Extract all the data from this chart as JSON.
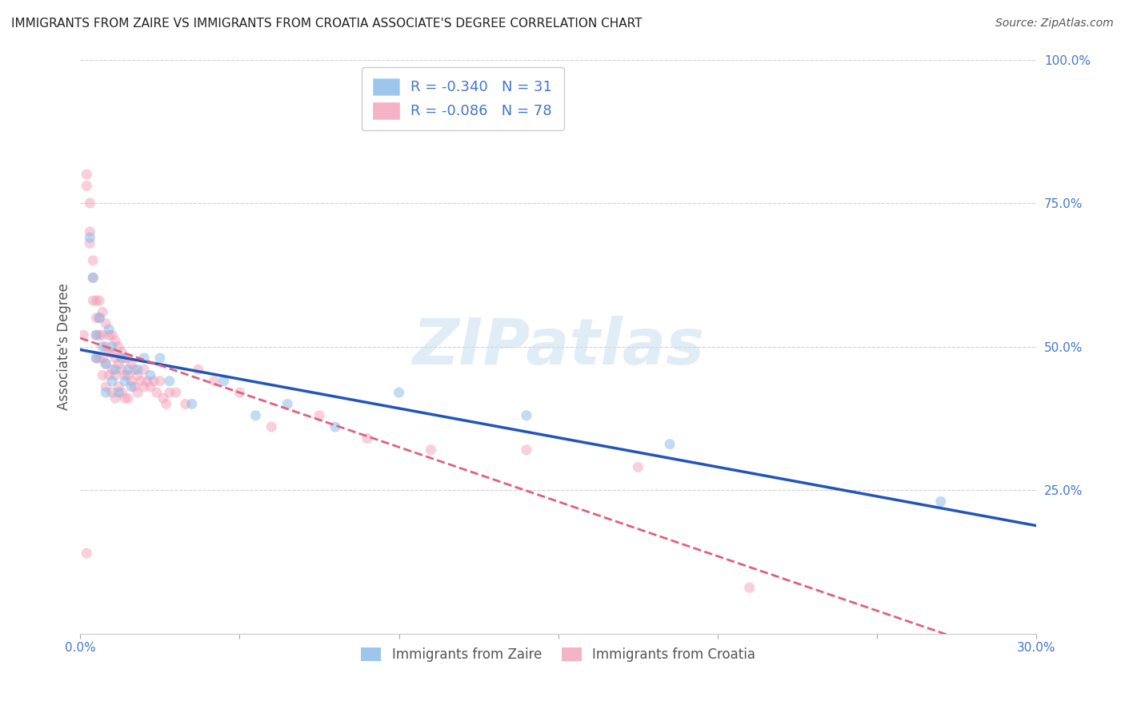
{
  "title": "IMMIGRANTS FROM ZAIRE VS IMMIGRANTS FROM CROATIA ASSOCIATE'S DEGREE CORRELATION CHART",
  "source": "Source: ZipAtlas.com",
  "ylabel": "Associate's Degree",
  "xlim": [
    0.0,
    0.3
  ],
  "ylim": [
    0.0,
    1.0
  ],
  "zaire_color": "#85b8e8",
  "croatia_color": "#f4a0b8",
  "zaire_line_color": "#2255bb",
  "croatia_line_color": "#e06080",
  "watermark_text": "ZIPatlas",
  "zaire_R": -0.34,
  "zaire_N": 31,
  "croatia_R": -0.086,
  "croatia_N": 78,
  "background_color": "#ffffff",
  "grid_color": "#cccccc",
  "axis_label_color": "#4477cc",
  "title_color": "#222222",
  "scatter_alpha": 0.5,
  "scatter_size": 90,
  "zaire_x": [
    0.003,
    0.004,
    0.005,
    0.005,
    0.006,
    0.007,
    0.008,
    0.008,
    0.009,
    0.01,
    0.01,
    0.011,
    0.012,
    0.013,
    0.014,
    0.015,
    0.016,
    0.018,
    0.02,
    0.022,
    0.025,
    0.028,
    0.035,
    0.045,
    0.055,
    0.065,
    0.08,
    0.1,
    0.14,
    0.185,
    0.27
  ],
  "zaire_y": [
    0.69,
    0.62,
    0.52,
    0.48,
    0.55,
    0.5,
    0.47,
    0.42,
    0.53,
    0.5,
    0.44,
    0.46,
    0.42,
    0.48,
    0.44,
    0.46,
    0.43,
    0.46,
    0.48,
    0.45,
    0.48,
    0.44,
    0.4,
    0.44,
    0.38,
    0.4,
    0.36,
    0.42,
    0.38,
    0.33,
    0.23
  ],
  "croatia_x": [
    0.001,
    0.002,
    0.002,
    0.003,
    0.003,
    0.003,
    0.004,
    0.004,
    0.004,
    0.005,
    0.005,
    0.005,
    0.005,
    0.006,
    0.006,
    0.006,
    0.006,
    0.007,
    0.007,
    0.007,
    0.007,
    0.008,
    0.008,
    0.008,
    0.008,
    0.009,
    0.009,
    0.009,
    0.01,
    0.01,
    0.01,
    0.01,
    0.011,
    0.011,
    0.011,
    0.011,
    0.012,
    0.012,
    0.012,
    0.013,
    0.013,
    0.013,
    0.014,
    0.014,
    0.014,
    0.015,
    0.015,
    0.015,
    0.016,
    0.016,
    0.017,
    0.017,
    0.018,
    0.018,
    0.019,
    0.02,
    0.02,
    0.021,
    0.022,
    0.023,
    0.024,
    0.025,
    0.026,
    0.027,
    0.028,
    0.03,
    0.033,
    0.037,
    0.042,
    0.05,
    0.06,
    0.075,
    0.09,
    0.11,
    0.14,
    0.175,
    0.21,
    0.002
  ],
  "croatia_y": [
    0.52,
    0.8,
    0.78,
    0.75,
    0.7,
    0.68,
    0.65,
    0.62,
    0.58,
    0.58,
    0.55,
    0.52,
    0.48,
    0.58,
    0.55,
    0.52,
    0.48,
    0.56,
    0.52,
    0.48,
    0.45,
    0.54,
    0.5,
    0.47,
    0.43,
    0.52,
    0.49,
    0.45,
    0.52,
    0.49,
    0.46,
    0.42,
    0.51,
    0.48,
    0.45,
    0.41,
    0.5,
    0.47,
    0.43,
    0.49,
    0.46,
    0.42,
    0.48,
    0.45,
    0.41,
    0.48,
    0.45,
    0.41,
    0.47,
    0.44,
    0.46,
    0.43,
    0.45,
    0.42,
    0.44,
    0.46,
    0.43,
    0.44,
    0.43,
    0.44,
    0.42,
    0.44,
    0.41,
    0.4,
    0.42,
    0.42,
    0.4,
    0.46,
    0.44,
    0.42,
    0.36,
    0.38,
    0.34,
    0.32,
    0.32,
    0.29,
    0.08,
    0.14
  ]
}
